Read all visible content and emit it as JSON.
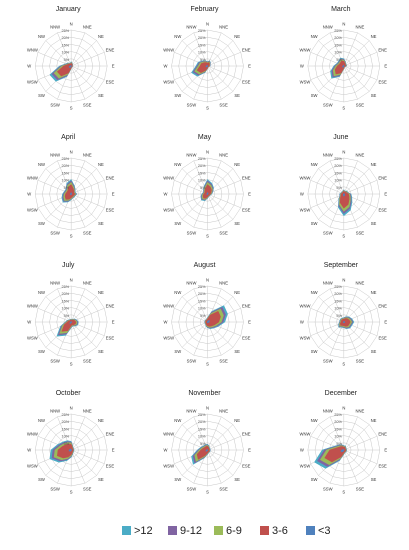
{
  "chart_data": {
    "type": "radar",
    "directions": [
      "N",
      "NNE",
      "NE",
      "ENE",
      "E",
      "ESE",
      "SE",
      "SSE",
      "S",
      "SSW",
      "SW",
      "WSW",
      "W",
      "WNW",
      "NW",
      "NNW"
    ],
    "rlim": [
      0,
      25
    ],
    "rticks": [
      "5%",
      "10%",
      "15%",
      "20%",
      "25%"
    ],
    "stacked": true,
    "legend": {
      "placement": "bottom",
      "entries": [
        {
          "label": ">12",
          "color": "#4bacc6"
        },
        {
          "label": "9-12",
          "color": "#8064a2"
        },
        {
          "label": "6-9",
          "color": "#9bbb59"
        },
        {
          "label": "3-6",
          "color": "#c0504d"
        },
        {
          "label": "<3",
          "color": "#4f81bd"
        }
      ]
    },
    "charts": [
      {
        "title": "January",
        "totals": [
          3,
          2,
          1.5,
          1,
          1,
          1,
          1,
          1,
          2,
          8,
          15,
          16,
          8,
          4,
          3,
          2
        ]
      },
      {
        "title": "February",
        "totals": [
          3,
          4,
          3,
          2,
          2,
          1,
          1,
          1,
          2,
          5,
          10,
          12,
          8,
          7,
          5,
          4
        ]
      },
      {
        "title": "March",
        "totals": [
          5,
          3,
          2,
          2,
          2,
          1,
          1,
          1,
          2,
          8,
          12,
          10,
          7,
          5,
          5,
          6
        ]
      },
      {
        "title": "April",
        "totals": [
          10,
          6,
          4,
          3,
          4,
          3,
          3,
          3,
          4,
          6,
          8,
          7,
          6,
          5,
          5,
          8
        ]
      },
      {
        "title": "May",
        "totals": [
          10,
          8,
          6,
          4,
          3,
          2,
          2,
          2,
          3,
          5,
          6,
          5,
          4,
          3,
          4,
          6
        ]
      },
      {
        "title": "June",
        "totals": [
          3,
          2,
          3,
          3,
          5,
          6,
          8,
          12,
          15,
          10,
          5,
          3,
          3,
          2,
          2,
          2
        ]
      },
      {
        "title": "July",
        "totals": [
          2,
          2,
          3,
          4,
          5,
          5,
          4,
          3,
          4,
          10,
          14,
          8,
          4,
          3,
          2,
          2
        ]
      },
      {
        "title": "August",
        "totals": [
          3,
          8,
          16,
          15,
          12,
          8,
          6,
          5,
          4,
          3,
          2,
          2,
          2,
          2,
          2,
          2
        ]
      },
      {
        "title": "September",
        "totals": [
          3,
          4,
          5,
          6,
          7,
          6,
          6,
          5,
          4,
          4,
          5,
          4,
          3,
          3,
          3,
          3
        ]
      },
      {
        "title": "October",
        "totals": [
          6,
          3,
          2,
          2,
          2,
          2,
          2,
          3,
          5,
          8,
          12,
          16,
          14,
          10,
          8,
          7
        ]
      },
      {
        "title": "November",
        "totals": [
          4,
          3,
          2,
          2,
          2,
          2,
          2,
          2,
          3,
          6,
          14,
          12,
          7,
          5,
          4,
          4
        ]
      },
      {
        "title": "December",
        "totals": [
          3,
          3,
          2,
          2,
          2,
          2,
          2,
          2,
          3,
          8,
          18,
          22,
          15,
          7,
          5,
          4
        ]
      }
    ],
    "band_fractions": [
      0.1,
      0.1,
      0.15,
      0.55,
      0.1
    ]
  }
}
